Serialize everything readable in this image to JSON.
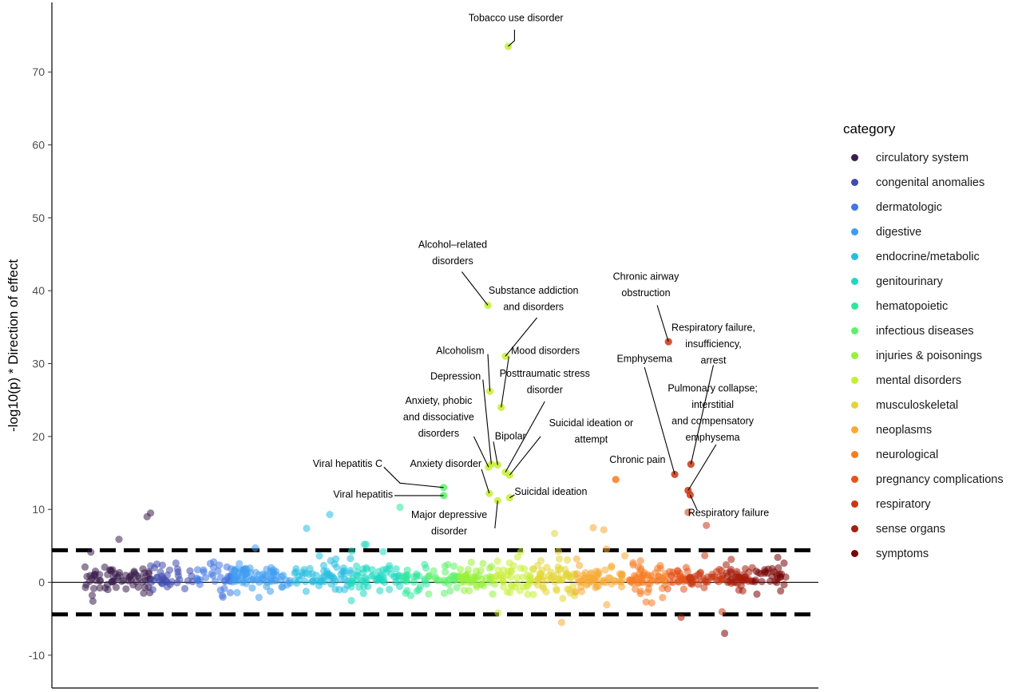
{
  "chart_data": {
    "type": "scatter",
    "title": "",
    "xlabel": "",
    "ylabel": "-log10(p) * Direction of effect",
    "ylim": [
      -14.5,
      79
    ],
    "yticks": [
      -10,
      0,
      10,
      20,
      30,
      40,
      50,
      60,
      70
    ],
    "yticklabels": [
      "-10",
      "0",
      "10",
      "20",
      "30",
      "40",
      "50",
      "60",
      "70"
    ],
    "threshold_lines": [
      4.4,
      -4.4
    ],
    "zero_line": 0,
    "grid": false,
    "legend_position": "right",
    "legend_title": "category",
    "categories": [
      {
        "name": "circulatory system",
        "color": "#3b1d4d",
        "n": 70,
        "x0": 0.0,
        "x1": 9.5
      },
      {
        "name": "congenital anomalies",
        "color": "#3f4bad",
        "n": 35,
        "x0": 9.5,
        "x1": 15.5
      },
      {
        "name": "dermatologic",
        "color": "#4276e0",
        "n": 35,
        "x0": 15.5,
        "x1": 21.0
      },
      {
        "name": "digestive",
        "color": "#3f9cf0",
        "n": 75,
        "x0": 21.0,
        "x1": 29.5
      },
      {
        "name": "endocrine/metabolic",
        "color": "#26bde0",
        "n": 60,
        "x0": 29.5,
        "x1": 38.0
      },
      {
        "name": "genitourinary",
        "color": "#1fd8c0",
        "n": 60,
        "x0": 38.0,
        "x1": 45.0
      },
      {
        "name": "hematopoietic",
        "color": "#2ee89a",
        "n": 25,
        "x0": 45.0,
        "x1": 49.0
      },
      {
        "name": "infectious diseases",
        "color": "#5ef06a",
        "n": 30,
        "x0": 49.0,
        "x1": 53.5
      },
      {
        "name": "injuries & poisonings",
        "color": "#98f03a",
        "n": 45,
        "x0": 53.5,
        "x1": 58.5
      },
      {
        "name": "mental disorders",
        "color": "#c6ee34",
        "n": 45,
        "x0": 58.5,
        "x1": 64.0
      },
      {
        "name": "musculoskeletal",
        "color": "#e3d537",
        "n": 55,
        "x0": 64.0,
        "x1": 70.0
      },
      {
        "name": "neoplasms",
        "color": "#f8aa35",
        "n": 60,
        "x0": 70.0,
        "x1": 77.0
      },
      {
        "name": "neurological",
        "color": "#f67c22",
        "n": 55,
        "x0": 77.0,
        "x1": 83.0
      },
      {
        "name": "pregnancy complications",
        "color": "#e4541b",
        "n": 25,
        "x0": 83.0,
        "x1": 86.0
      },
      {
        "name": "respiratory",
        "color": "#c93814",
        "n": 40,
        "x0": 86.0,
        "x1": 91.0
      },
      {
        "name": "sense organs",
        "color": "#a61d0b",
        "n": 40,
        "x0": 91.0,
        "x1": 95.5
      },
      {
        "name": "symptoms",
        "color": "#7a0403",
        "n": 30,
        "x0": 95.5,
        "x1": 100.0
      }
    ],
    "highlighted_points": [
      {
        "label": "Tobacco use disorder",
        "x": 60.4,
        "y": 73.5,
        "category": "mental disorders"
      },
      {
        "label": "Alcohol–related disorders",
        "x": 57.5,
        "y": 38,
        "category": "mental disorders"
      },
      {
        "label": "Substance addiction and disorders",
        "x": 60.0,
        "y": 31,
        "category": "mental disorders"
      },
      {
        "label": "Alcoholism",
        "x": 57.8,
        "y": 26.2,
        "category": "mental disorders"
      },
      {
        "label": "Mood disorders",
        "x": 59.4,
        "y": 24,
        "category": "mental disorders"
      },
      {
        "label": "Depression",
        "x": 58.0,
        "y": 16.2,
        "category": "mental disorders"
      },
      {
        "label": "Bipolar",
        "x": 58.9,
        "y": 16.1,
        "category": "mental disorders"
      },
      {
        "label": "Anxiety, phobic and dissociative disorders",
        "x": 57.6,
        "y": 15.8,
        "category": "mental disorders"
      },
      {
        "label": "Posttraumatic stress disorder",
        "x": 60.0,
        "y": 15.1,
        "category": "mental disorders"
      },
      {
        "label": "Suicidal ideation or attempt",
        "x": 60.6,
        "y": 14.7,
        "category": "mental disorders"
      },
      {
        "label": "Anxiety disorder",
        "x": 57.7,
        "y": 12.2,
        "category": "mental disorders"
      },
      {
        "label": "Suicidal ideation",
        "x": 60.6,
        "y": 11.6,
        "category": "mental disorders"
      },
      {
        "label": "Major depressive disorder",
        "x": 58.9,
        "y": 11.2,
        "category": "mental disorders"
      },
      {
        "label": "Viral hepatitis C",
        "x": 51.2,
        "y": 13,
        "category": "infectious diseases"
      },
      {
        "label": "Viral hepatitis",
        "x": 51.2,
        "y": 11.9,
        "category": "infectious diseases"
      },
      {
        "label": "Chronic airway obstruction",
        "x": 83.2,
        "y": 33,
        "category": "respiratory"
      },
      {
        "label": "Emphysema",
        "x": 84.1,
        "y": 14.8,
        "category": "respiratory"
      },
      {
        "label": "Chronic pain",
        "x": 75.7,
        "y": 14.1,
        "category": "neurological"
      },
      {
        "label": "Respiratory failure, insufficiency, arrest",
        "x": 86.4,
        "y": 16.2,
        "category": "respiratory"
      },
      {
        "label": "Pulmonary collapse; interstitial and compensatory emphysema",
        "x": 86.0,
        "y": 12.6,
        "category": "respiratory"
      },
      {
        "label": "Respiratory failure",
        "x": 86.3,
        "y": 12.0,
        "category": "respiratory"
      }
    ],
    "notable_points": [
      {
        "x": 9.5,
        "y": 9.5,
        "category": "circulatory system"
      },
      {
        "x": 9.0,
        "y": 9.0,
        "category": "circulatory system"
      },
      {
        "x": 5.0,
        "y": 5.9,
        "category": "circulatory system"
      },
      {
        "x": 31.7,
        "y": 7.4,
        "category": "endocrine/metabolic"
      },
      {
        "x": 35.0,
        "y": 9.3,
        "category": "endocrine/metabolic"
      },
      {
        "x": 45.0,
        "y": 10.3,
        "category": "hematopoietic"
      },
      {
        "x": 67.0,
        "y": 6.7,
        "category": "musculoskeletal"
      },
      {
        "x": 72.5,
        "y": 7.5,
        "category": "neoplasms"
      },
      {
        "x": 74.0,
        "y": 7.2,
        "category": "neoplasms"
      },
      {
        "x": 68.0,
        "y": -5.5,
        "category": "neoplasms"
      },
      {
        "x": 88.6,
        "y": 7.8,
        "category": "respiratory"
      },
      {
        "x": 85.0,
        "y": -4.8,
        "category": "sense organs"
      },
      {
        "x": 91.2,
        "y": -7.0,
        "category": "symptoms"
      },
      {
        "x": 86.0,
        "y": 9.6,
        "category": "respiratory"
      }
    ],
    "labels": [
      {
        "text": [
          "Tobacco use disorder"
        ],
        "tx": 61.5,
        "ty": 77.0,
        "anchor": "middle",
        "line": [
          [
            61.3,
            75.8
          ],
          [
            61.3,
            74.3
          ],
          [
            60.4,
            73.5
          ]
        ]
      },
      {
        "text": [
          "Alcohol–related",
          "disorders"
        ],
        "tx": 52.5,
        "ty": 45.9,
        "anchor": "middle",
        "line": [
          [
            53.8,
            42.6
          ],
          [
            57.5,
            38.0
          ]
        ]
      },
      {
        "text": [
          "Substance addiction",
          "and disorders"
        ],
        "tx": 64.0,
        "ty": 39.6,
        "anchor": "middle",
        "line": [
          [
            64.5,
            36.3
          ],
          [
            60.0,
            31.0
          ]
        ]
      },
      {
        "text": [
          "Alcoholism"
        ],
        "tx": 57.0,
        "ty": 31.3,
        "anchor": "end",
        "line": [
          [
            57.5,
            31.3
          ],
          [
            57.8,
            26.2
          ]
        ]
      },
      {
        "text": [
          "Mood disorders"
        ],
        "tx": 60.8,
        "ty": 31.3,
        "anchor": "start",
        "line": [
          [
            60.5,
            31.0
          ],
          [
            59.4,
            24.0
          ]
        ]
      },
      {
        "text": [
          "Depression"
        ],
        "tx": 56.5,
        "ty": 27.8,
        "anchor": "end",
        "line": [
          [
            56.8,
            27.8
          ],
          [
            58.0,
            16.2
          ]
        ]
      },
      {
        "text": [
          "Posttraumatic stress",
          "disorder"
        ],
        "tx": 65.6,
        "ty": 28.2,
        "anchor": "middle",
        "line": [
          [
            65.6,
            24.8
          ],
          [
            60.0,
            15.1
          ]
        ]
      },
      {
        "text": [
          "Anxiety, phobic",
          "and dissociative",
          "disorders"
        ],
        "tx": 50.5,
        "ty": 24.5,
        "anchor": "middle",
        "line": [
          [
            55.5,
            20.0
          ],
          [
            57.6,
            15.8
          ]
        ]
      },
      {
        "text": [
          "Bipolar"
        ],
        "tx": 58.5,
        "ty": 19.6,
        "anchor": "start",
        "line": [
          [
            58.3,
            19.3
          ],
          [
            58.9,
            16.1
          ]
        ]
      },
      {
        "text": [
          "Suicidal ideation or",
          "attempt"
        ],
        "tx": 72.2,
        "ty": 21.4,
        "anchor": "middle",
        "line": [
          [
            65.0,
            20.0
          ],
          [
            60.6,
            14.7
          ]
        ]
      },
      {
        "text": [
          "Viral hepatitis C"
        ],
        "tx": 42.5,
        "ty": 15.8,
        "anchor": "end",
        "line": [
          [
            42.7,
            15.8
          ],
          [
            45.0,
            13.6
          ],
          [
            51.2,
            13.0
          ]
        ]
      },
      {
        "text": [
          "Anxiety disorder"
        ],
        "tx": 56.6,
        "ty": 15.8,
        "anchor": "end",
        "line": [
          [
            56.6,
            15.5
          ],
          [
            57.7,
            12.2
          ]
        ]
      },
      {
        "text": [
          "Viral hepatitis"
        ],
        "tx": 44.0,
        "ty": 11.6,
        "anchor": "end",
        "line": [
          [
            44.2,
            11.9
          ],
          [
            51.2,
            11.9
          ]
        ]
      },
      {
        "text": [
          "Suicidal ideation"
        ],
        "tx": 61.3,
        "ty": 12.0,
        "anchor": "start",
        "line": [
          [
            61.3,
            12.0
          ],
          [
            60.6,
            11.6
          ]
        ]
      },
      {
        "text": [
          "Major depressive",
          "disorder"
        ],
        "tx": 52.0,
        "ty": 8.8,
        "anchor": "middle",
        "line": [
          [
            58.5,
            7.4
          ],
          [
            58.9,
            11.2
          ]
        ]
      },
      {
        "text": [
          "Chronic airway",
          "obstruction"
        ],
        "tx": 80.0,
        "ty": 41.5,
        "anchor": "middle",
        "line": [
          [
            81.6,
            38.0
          ],
          [
            83.2,
            33.0
          ]
        ]
      },
      {
        "text": [
          "Respiratory failure,",
          "insufficiency,",
          "arrest"
        ],
        "tx": 89.6,
        "ty": 34.5,
        "anchor": "middle",
        "line": [
          [
            89.6,
            29.8
          ],
          [
            86.4,
            16.2
          ]
        ]
      },
      {
        "text": [
          "Emphysema"
        ],
        "tx": 79.8,
        "ty": 30.2,
        "anchor": "middle",
        "line": [
          [
            79.8,
            29.5
          ],
          [
            84.1,
            14.8
          ]
        ]
      },
      {
        "text": [
          "Pulmonary collapse;",
          "interstitial",
          "and compensatory",
          "emphysema"
        ],
        "tx": 89.5,
        "ty": 26.2,
        "anchor": "middle",
        "line": [
          [
            90.0,
            18.9
          ],
          [
            86.0,
            12.6
          ]
        ]
      },
      {
        "text": [
          "Chronic pain"
        ],
        "tx": 78.8,
        "ty": 16.4,
        "anchor": "middle",
        "line": null
      },
      {
        "text": [
          "Respiratory failure"
        ],
        "tx": 86.0,
        "ty": 9.1,
        "anchor": "start",
        "line": [
          [
            87.3,
            9.9
          ],
          [
            86.3,
            12.0
          ]
        ]
      }
    ]
  }
}
